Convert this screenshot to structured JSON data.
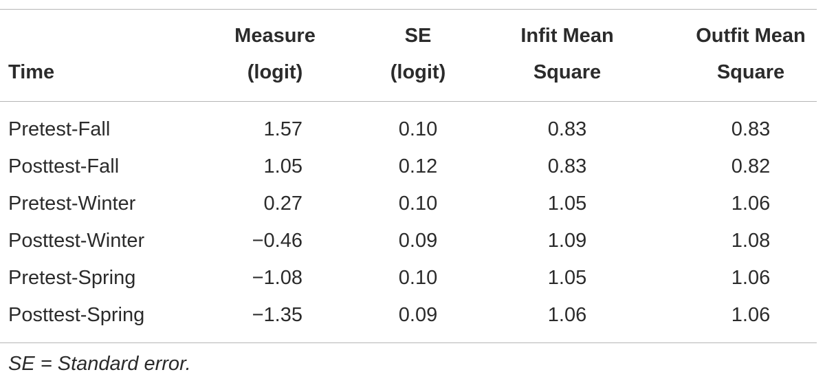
{
  "table": {
    "headers": {
      "time": "Time",
      "measure": [
        "Measure",
        "(logit)"
      ],
      "se": [
        "SE",
        "(logit)"
      ],
      "infit": [
        "Infit Mean",
        "Square"
      ],
      "outfit": [
        "Outfit Mean",
        "Square"
      ]
    },
    "rows": [
      {
        "time": "Pretest-Fall",
        "measure": "1.57",
        "se": "0.10",
        "infit": "0.83",
        "outfit": "0.83"
      },
      {
        "time": "Posttest-Fall",
        "measure": "1.05",
        "se": "0.12",
        "infit": "0.83",
        "outfit": "0.82"
      },
      {
        "time": "Pretest-Winter",
        "measure": "0.27",
        "se": "0.10",
        "infit": "1.05",
        "outfit": "1.06"
      },
      {
        "time": "Posttest-Winter",
        "measure": "−0.46",
        "se": "0.09",
        "infit": "1.09",
        "outfit": "1.08"
      },
      {
        "time": "Pretest-Spring",
        "measure": "−1.08",
        "se": "0.10",
        "infit": "1.05",
        "outfit": "1.06"
      },
      {
        "time": "Posttest-Spring",
        "measure": "−1.35",
        "se": "0.09",
        "infit": "1.06",
        "outfit": "1.06"
      }
    ],
    "footnote": "SE = Standard error."
  }
}
